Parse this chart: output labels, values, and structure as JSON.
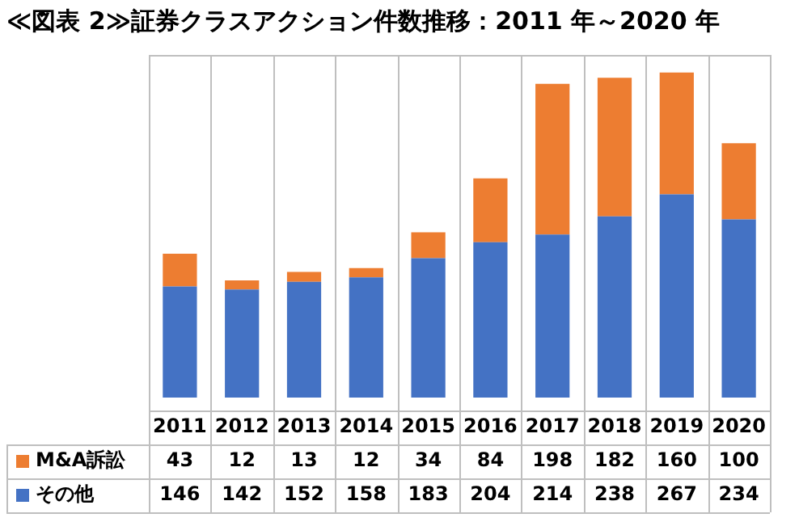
{
  "chart_data": {
    "type": "bar",
    "title": "≪図表 2≫証券クラスアクション件数推移：2011 年～2020 年",
    "categories": [
      "2011",
      "2012",
      "2013",
      "2014",
      "2015",
      "2016",
      "2017",
      "2018",
      "2019",
      "2020"
    ],
    "stacked": true,
    "data_labels": true,
    "legend": "left",
    "series": [
      {
        "name": "その他",
        "color": "#4472c4",
        "values": [
          146,
          142,
          152,
          158,
          183,
          204,
          214,
          238,
          267,
          234
        ]
      },
      {
        "name": "M&A訴訟",
        "color": "#ed7d31",
        "values": [
          43,
          12,
          13,
          12,
          34,
          84,
          198,
          182,
          160,
          100
        ]
      }
    ]
  }
}
